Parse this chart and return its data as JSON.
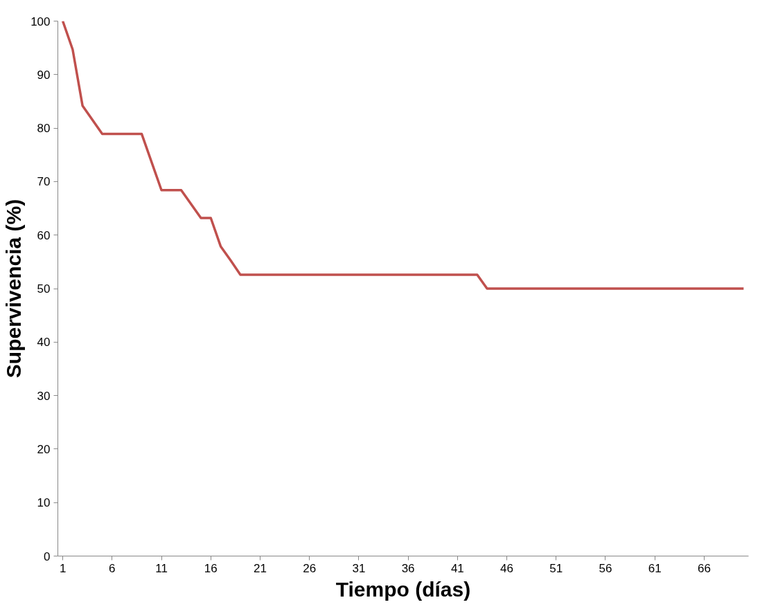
{
  "chart_data": {
    "type": "line",
    "xlabel": "Tiempo (días)",
    "ylabel": "Supervivencia (%)",
    "x": [
      1,
      2,
      3,
      5,
      9,
      11,
      13,
      15,
      16,
      17,
      18,
      19,
      43,
      44,
      70
    ],
    "series": [
      {
        "color": "#c0504d",
        "values": [
          100,
          94.7,
          84.2,
          78.9,
          78.9,
          68.4,
          68.4,
          63.2,
          63.2,
          57.9,
          55.3,
          52.6,
          52.6,
          50,
          50
        ]
      }
    ],
    "xlim": [
      0.5,
      70.5
    ],
    "xticks": [
      1,
      6,
      11,
      16,
      21,
      26,
      31,
      36,
      41,
      46,
      51,
      56,
      61,
      66
    ],
    "ylim": [
      0,
      100
    ],
    "yticks": [
      0,
      10,
      20,
      30,
      40,
      50,
      60,
      70,
      80,
      90,
      100
    ],
    "grid": false,
    "marker": "none",
    "line_style": "solid"
  }
}
